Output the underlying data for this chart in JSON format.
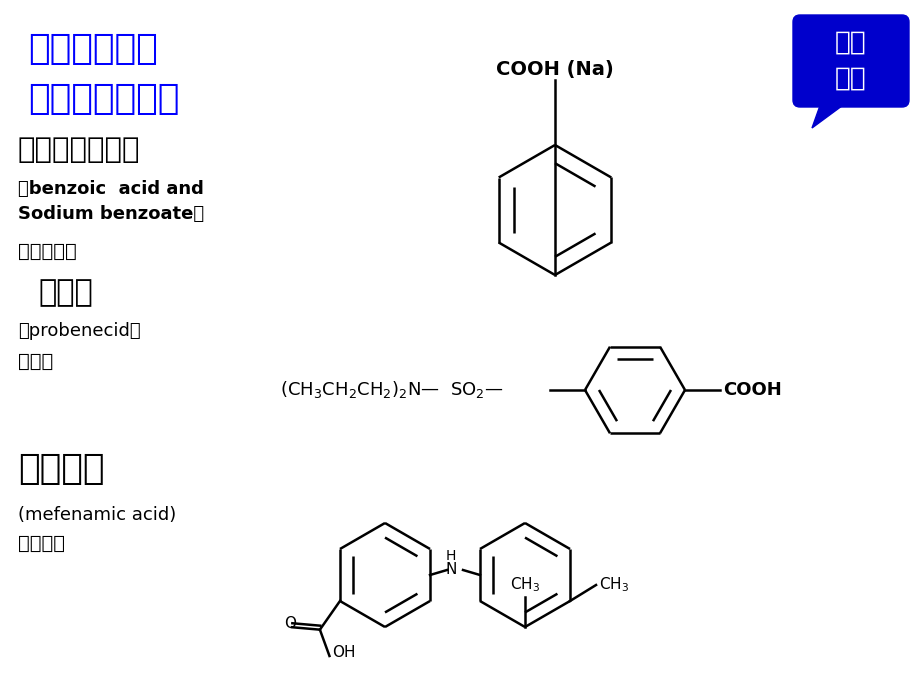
{
  "bg_color": "#ffffff",
  "title_line1": "一、苯甲酸类",
  "title_line2": "（一）典型药物",
  "title_color": "#0000ff",
  "title_fontsize": 26,
  "drug1_name": "苯甲酸及其钠盐",
  "drug1_name_fontsize": 21,
  "drug1_en_line1": "（benzoic  acid and",
  "drug1_en_line2": "Sodium benzoate）",
  "drug1_use": "消毒、防腐",
  "drug2_name": "丙磺舒",
  "drug2_name_fontsize": 22,
  "drug2_en": "（probenecid）",
  "drug2_use": "抗痛风",
  "drug3_name": "甲芬那酸",
  "drug3_name_fontsize": 26,
  "drug3_en": "(mefenamic acid)",
  "drug3_use": "消炎镇痛",
  "badge_text": "芳酸\n酯类",
  "badge_bg": "#0000cc",
  "badge_fg": "#ffffff",
  "lw": 1.8
}
